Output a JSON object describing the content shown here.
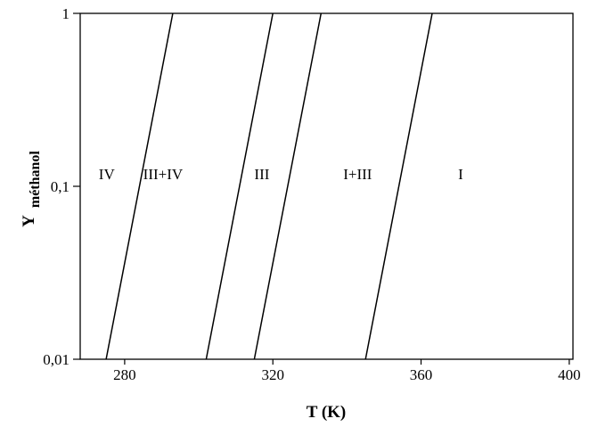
{
  "chart_data": {
    "type": "line",
    "title": "",
    "xlabel": "T (K)",
    "ylabel": "Y",
    "ylabel_sub": "méthanol",
    "xlim": [
      268,
      401
    ],
    "ylim": [
      0.01,
      1
    ],
    "yscale": "log",
    "grid": false,
    "x_ticks": [
      {
        "value": 280,
        "label": "280"
      },
      {
        "value": 320,
        "label": "320"
      },
      {
        "value": 360,
        "label": "360"
      },
      {
        "value": 400,
        "label": "400"
      }
    ],
    "y_ticks": [
      {
        "value": 0.01,
        "label": "0,01"
      },
      {
        "value": 0.1,
        "label": "0,1"
      },
      {
        "value": 1,
        "label": "1"
      }
    ],
    "series": [
      {
        "points": [
          {
            "x": 275,
            "y": 0.01
          },
          {
            "x": 293,
            "y": 1
          }
        ]
      },
      {
        "points": [
          {
            "x": 302,
            "y": 0.01
          },
          {
            "x": 320,
            "y": 1
          }
        ]
      },
      {
        "points": [
          {
            "x": 315,
            "y": 0.01
          },
          {
            "x": 333,
            "y": 1
          }
        ]
      },
      {
        "points": [
          {
            "x": 345,
            "y": 0.01
          },
          {
            "x": 363,
            "y": 1
          }
        ]
      }
    ],
    "regions": [
      {
        "label": "IV",
        "x": 273,
        "y": 0.11
      },
      {
        "label": "III+IV",
        "x": 285,
        "y": 0.11
      },
      {
        "label": "III",
        "x": 315,
        "y": 0.11
      },
      {
        "label": "I+III",
        "x": 339,
        "y": 0.11
      },
      {
        "label": "I",
        "x": 370,
        "y": 0.11
      }
    ]
  }
}
